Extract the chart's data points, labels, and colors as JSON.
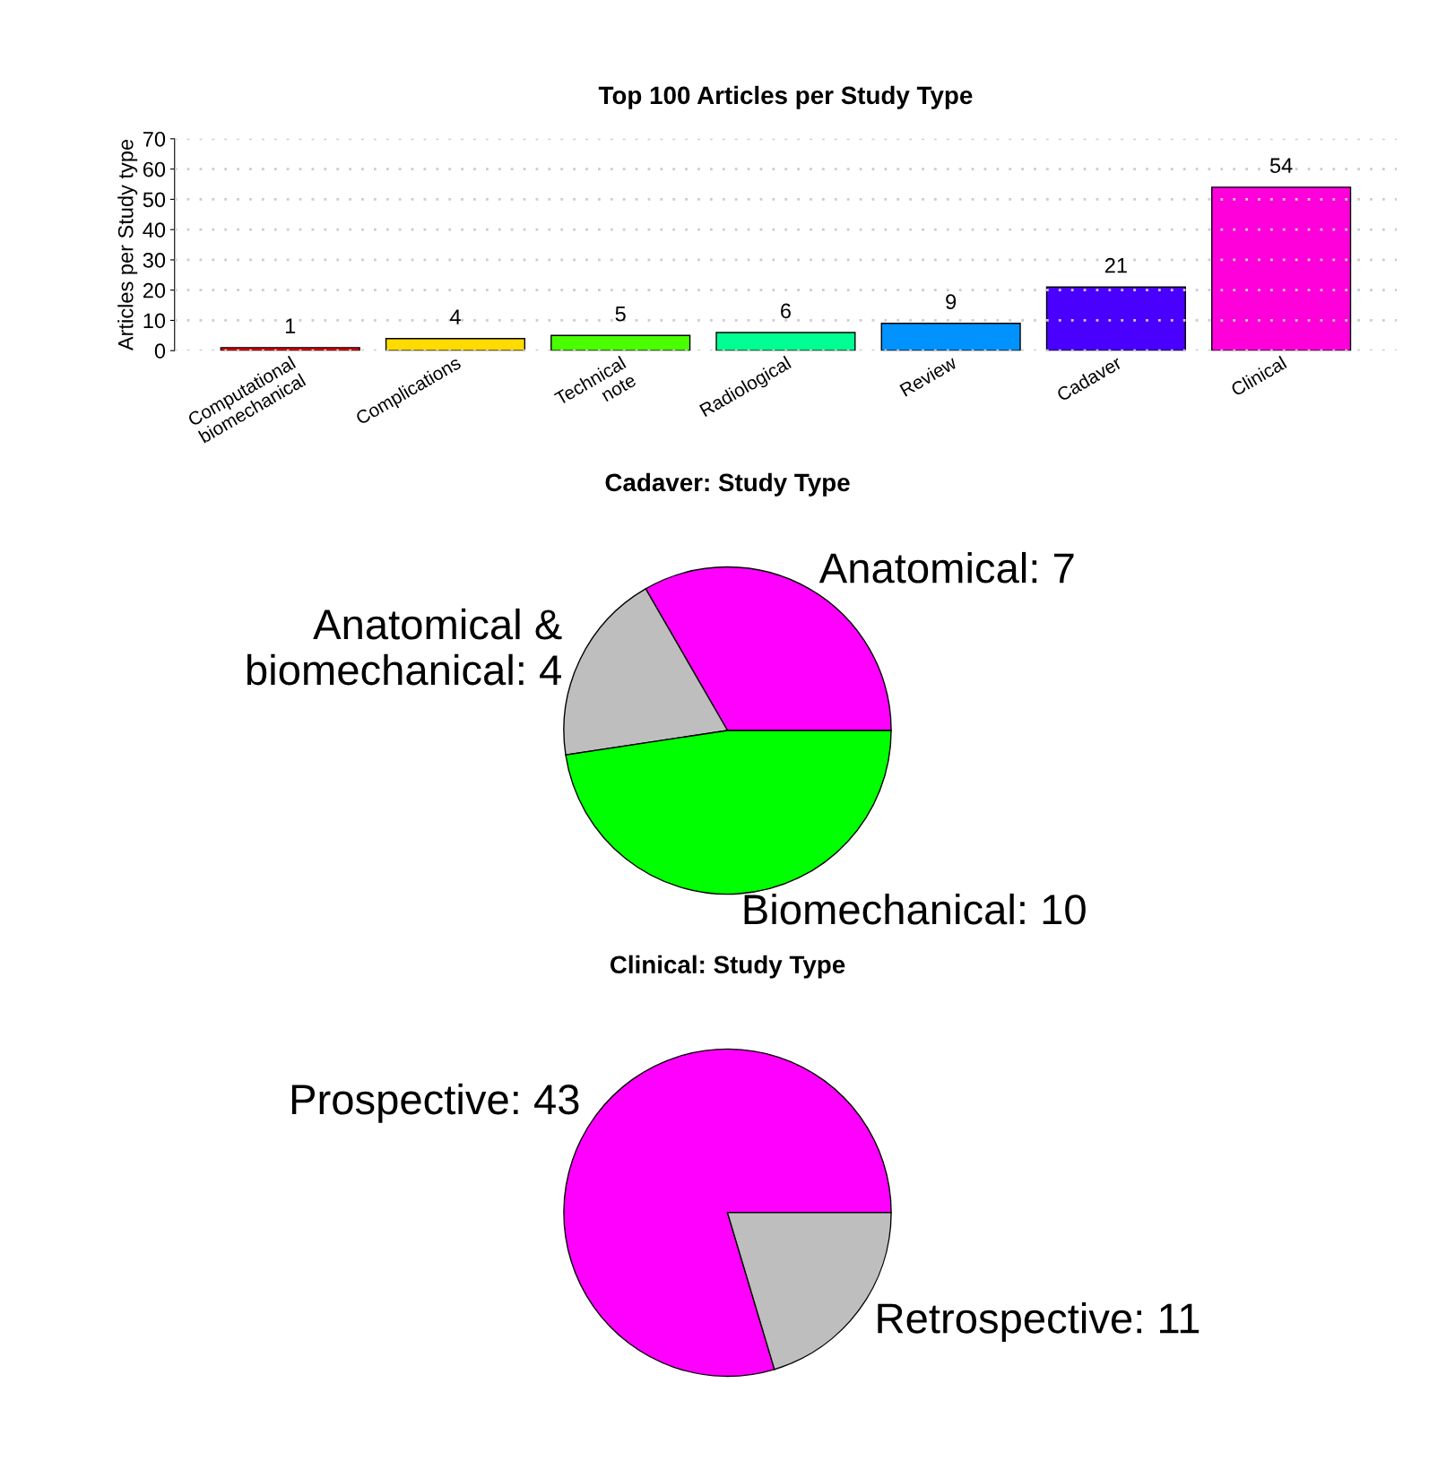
{
  "chart_data": [
    {
      "type": "bar",
      "title": "Top 100 Articles per Study Type",
      "ylabel": "Articles per Study type",
      "categories": [
        "Computational\nbiomechanical",
        "Complications",
        "Technical\nnote",
        "Radiological",
        "Review",
        "Cadaver",
        "Clinical"
      ],
      "values": [
        1,
        4,
        5,
        6,
        9,
        21,
        54
      ],
      "colors": [
        "#ff0000",
        "#ffdb00",
        "#49ff00",
        "#00ff92",
        "#0092ff",
        "#4900ff",
        "#ff00db"
      ],
      "ylim": [
        0,
        70
      ],
      "yticks": [
        0,
        10,
        20,
        30,
        40,
        50,
        60,
        70
      ],
      "grid": "y",
      "data_labels": true
    },
    {
      "type": "pie",
      "title": "Cadaver: Study Type",
      "categories": [
        "Anatomical: 7",
        "Anatomical &\nbiomechanical: 4",
        "Biomechanical: 10"
      ],
      "values": [
        7,
        4,
        10
      ],
      "colors": [
        "#ff00ff",
        "#bebebe",
        "#00ff00"
      ]
    },
    {
      "type": "pie",
      "title": "Clinical: Study Type",
      "categories": [
        "Prospective: 43",
        "Retrospective: 11"
      ],
      "values": [
        43,
        11
      ],
      "colors": [
        "#ff00ff",
        "#bebebe"
      ]
    }
  ]
}
